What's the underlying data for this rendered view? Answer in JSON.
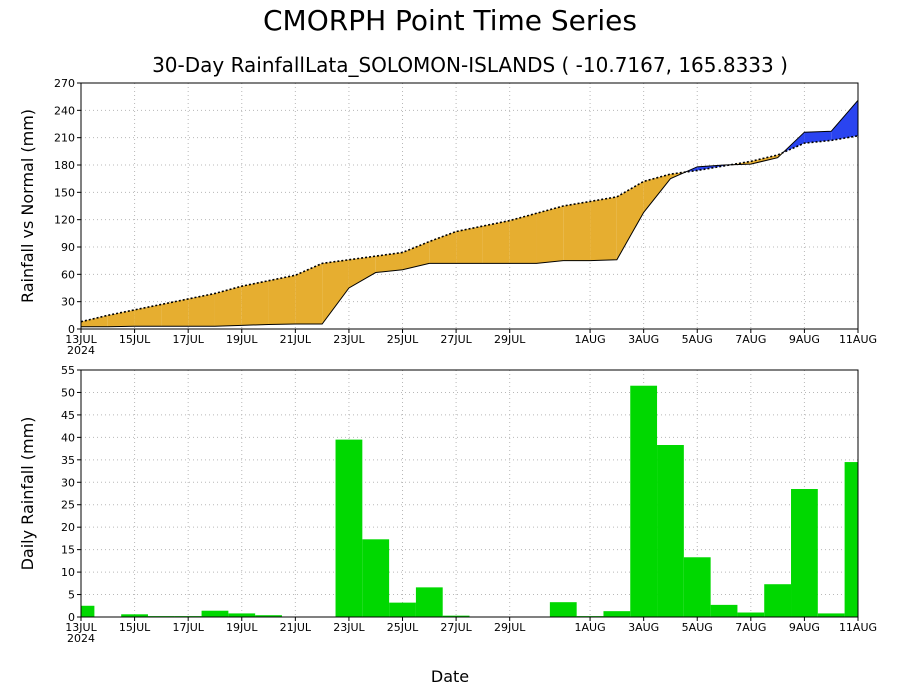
{
  "title": "CMORPH Point Time Series",
  "subtitle": "30-Day RainfallLata_SOLOMON-ISLANDS ( -10.7167, 165.8333 )",
  "xlabel": "Date",
  "colors": {
    "below_normal": "#e6ae30",
    "above_normal": "#2a44f0",
    "daily_bar": "#00d800",
    "axis": "#000000",
    "grid": "#b8b8b8"
  },
  "chart_data": [
    {
      "type": "area",
      "ylabel": "Rainfall vs Normal (mm)",
      "ylim": [
        0,
        270
      ],
      "yticks": [
        0,
        30,
        60,
        90,
        120,
        150,
        180,
        210,
        240,
        270
      ],
      "xlim": [
        0,
        29
      ],
      "xticks": [
        {
          "pos": 0,
          "label": "13JUL",
          "label2": "2024"
        },
        {
          "pos": 2,
          "label": "15JUL"
        },
        {
          "pos": 4,
          "label": "17JUL"
        },
        {
          "pos": 6,
          "label": "19JUL"
        },
        {
          "pos": 8,
          "label": "21JUL"
        },
        {
          "pos": 10,
          "label": "23JUL"
        },
        {
          "pos": 12,
          "label": "25JUL"
        },
        {
          "pos": 14,
          "label": "27JUL"
        },
        {
          "pos": 16,
          "label": "29JUL"
        },
        {
          "pos": 19,
          "label": "1AUG"
        },
        {
          "pos": 21,
          "label": "3AUG"
        },
        {
          "pos": 23,
          "label": "5AUG"
        },
        {
          "pos": 25,
          "label": "7AUG"
        },
        {
          "pos": 27,
          "label": "9AUG"
        },
        {
          "pos": 29,
          "label": "11AUG"
        }
      ],
      "grid": true,
      "series": [
        {
          "values": [
            2.5,
            2.5,
            3.0,
            3.0,
            3.0,
            3.0,
            4.0,
            5.0,
            5.5,
            5.5,
            45,
            62,
            65,
            72,
            72,
            72,
            72,
            72,
            75,
            75,
            76,
            128,
            165,
            178,
            180,
            181,
            188,
            216,
            217,
            251
          ]
        },
        {
          "values": [
            8,
            15,
            21,
            27,
            33,
            39,
            47,
            53,
            59,
            72,
            76,
            80,
            84,
            96,
            107,
            113,
            119,
            127,
            135,
            140,
            145,
            162,
            170,
            174,
            179,
            184,
            191,
            204,
            207,
            212
          ]
        }
      ]
    },
    {
      "type": "bar",
      "ylabel": "Daily Rainfall (mm)",
      "ylim": [
        0,
        55
      ],
      "yticks": [
        0,
        5,
        10,
        15,
        20,
        25,
        30,
        35,
        40,
        45,
        50,
        55
      ],
      "xlim": [
        0,
        29
      ],
      "grid": true,
      "x": [
        0,
        1,
        2,
        3,
        4,
        5,
        6,
        7,
        8,
        9,
        10,
        11,
        12,
        13,
        14,
        15,
        16,
        17,
        18,
        19,
        20,
        21,
        22,
        23,
        24,
        25,
        26,
        27,
        28,
        29
      ],
      "values": [
        2.5,
        0,
        0.6,
        0.2,
        0.2,
        1.4,
        0.8,
        0.4,
        0.1,
        0,
        39.5,
        17.3,
        3.2,
        6.6,
        0.3,
        0.1,
        0.1,
        0.1,
        3.3,
        0.2,
        1.3,
        51.5,
        38.3,
        13.3,
        2.7,
        1.0,
        7.3,
        28.5,
        0.8,
        34.5
      ]
    }
  ]
}
